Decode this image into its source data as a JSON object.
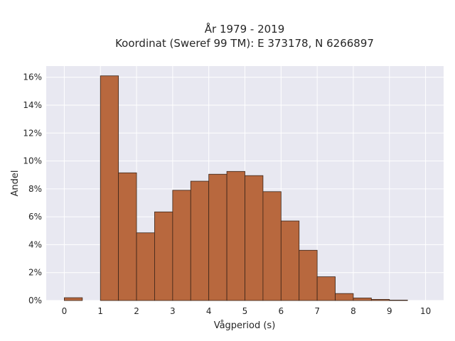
{
  "chart_data": {
    "type": "bar",
    "title_lines": [
      "År 1979 - 2019",
      "Koordinat (Sweref 99 TM): E 373178, N 6266897"
    ],
    "xlabel": "Vågperiod (s)",
    "ylabel": "Andel",
    "xlim": [
      -0.5,
      10.5
    ],
    "ylim": [
      0,
      16.8
    ],
    "x_ticks": [
      0,
      1,
      2,
      3,
      4,
      5,
      6,
      7,
      8,
      9,
      10
    ],
    "y_ticks": [
      0,
      2,
      4,
      6,
      8,
      10,
      12,
      14,
      16
    ],
    "y_tick_format": "percent",
    "bin_width": 0.5,
    "bins": [
      {
        "start": 0.0,
        "value": 0.2
      },
      {
        "start": 0.5,
        "value": 0.0
      },
      {
        "start": 1.0,
        "value": 16.1
      },
      {
        "start": 1.5,
        "value": 9.15
      },
      {
        "start": 2.0,
        "value": 4.85
      },
      {
        "start": 2.5,
        "value": 6.35
      },
      {
        "start": 3.0,
        "value": 7.9
      },
      {
        "start": 3.5,
        "value": 8.55
      },
      {
        "start": 4.0,
        "value": 9.05
      },
      {
        "start": 4.5,
        "value": 9.25
      },
      {
        "start": 5.0,
        "value": 8.95
      },
      {
        "start": 5.5,
        "value": 7.8
      },
      {
        "start": 6.0,
        "value": 5.7
      },
      {
        "start": 6.5,
        "value": 3.6
      },
      {
        "start": 7.0,
        "value": 1.7
      },
      {
        "start": 7.5,
        "value": 0.5
      },
      {
        "start": 8.0,
        "value": 0.18
      },
      {
        "start": 8.5,
        "value": 0.08
      },
      {
        "start": 9.0,
        "value": 0.03
      }
    ],
    "grid": true,
    "colors": {
      "bar_fill": "#b8683e",
      "bar_stroke": "#3a2418",
      "plot_background": "#e8e8f1",
      "grid": "#ffffff"
    }
  }
}
